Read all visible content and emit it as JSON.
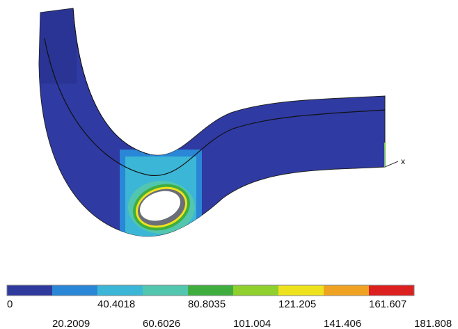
{
  "triad_label": "x",
  "legend": {
    "colors": [
      "#2f3a9e",
      "#2a86d6",
      "#3cb6d6",
      "#52c6ae",
      "#3fae3f",
      "#8fcf2e",
      "#eee21e",
      "#f0a223",
      "#dc2020"
    ],
    "top_labels": [
      "0",
      "40.4018",
      "80.8035",
      "121.205",
      "161.607"
    ],
    "bottom_labels": [
      "20.2009",
      "60.6026",
      "101.004",
      "141.406",
      "181.808"
    ]
  }
}
